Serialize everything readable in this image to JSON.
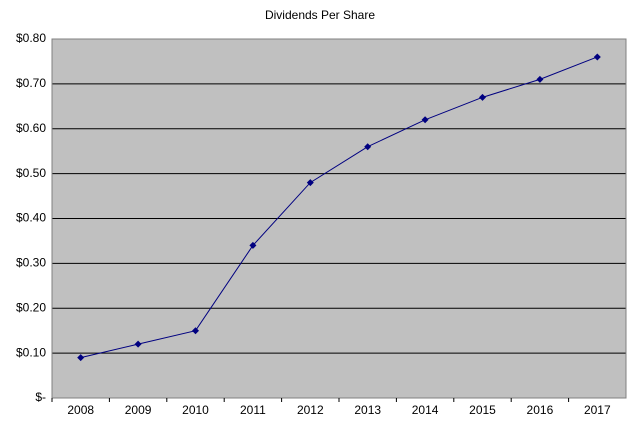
{
  "chart_data": {
    "type": "line",
    "title": "Dividends Per Share",
    "categories": [
      "2008",
      "2009",
      "2010",
      "2011",
      "2012",
      "2013",
      "2014",
      "2015",
      "2016",
      "2017"
    ],
    "values": [
      0.09,
      0.12,
      0.15,
      0.34,
      0.48,
      0.56,
      0.62,
      0.67,
      0.71,
      0.76
    ],
    "color": "#000080",
    "ylim": [
      0,
      0.8
    ],
    "yticks": [
      {
        "value": 0,
        "label": "$-"
      },
      {
        "value": 0.1,
        "label": "$0.10"
      },
      {
        "value": 0.2,
        "label": "$0.20"
      },
      {
        "value": 0.3,
        "label": "$0.30"
      },
      {
        "value": 0.4,
        "label": "$0.40"
      },
      {
        "value": 0.5,
        "label": "$0.50"
      },
      {
        "value": 0.6,
        "label": "$0.60"
      },
      {
        "value": 0.7,
        "label": "$0.70"
      },
      {
        "value": 0.8,
        "label": "$0.80"
      }
    ],
    "grid": true
  }
}
